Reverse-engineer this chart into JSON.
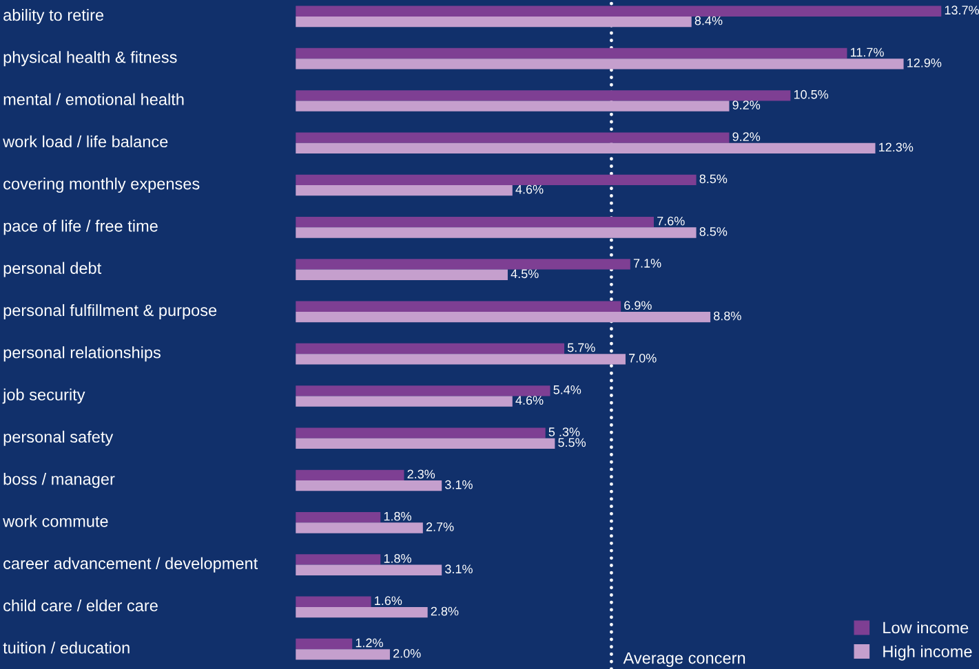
{
  "chart_data": {
    "type": "bar",
    "orientation": "horizontal",
    "categories": [
      "ability to retire",
      "physical health & fitness",
      "mental / emotional health",
      "work load / life balance",
      "covering monthly expenses",
      "pace of life / free time",
      "personal debt",
      "personal fulfillment & purpose",
      "personal relationships",
      "job security",
      "personal safety",
      "boss / manager",
      "work commute",
      "career advancement / development",
      "child care / elder care",
      "tuition / education"
    ],
    "series": [
      {
        "name": "Low income",
        "color": "#7e3f93",
        "values": [
          13.7,
          11.7,
          10.5,
          9.2,
          8.5,
          7.6,
          7.1,
          6.9,
          5.7,
          5.4,
          5.3,
          2.3,
          1.8,
          1.8,
          1.6,
          1.2
        ],
        "value_labels": [
          "13.7%",
          "11.7%",
          "10.5%",
          "9.2%",
          "8.5%",
          "7.6%",
          "7.1%",
          "6.9%",
          "5.7%",
          "5.4%",
          "5 .3%",
          "2.3%",
          "1.8%",
          "1.8%",
          "1.6%",
          "1.2%"
        ]
      },
      {
        "name": "High income",
        "color": "#c59fcd",
        "values": [
          8.4,
          12.9,
          9.2,
          12.3,
          4.6,
          8.5,
          4.5,
          8.8,
          7.0,
          4.6,
          5.5,
          3.1,
          2.7,
          3.1,
          2.8,
          2.0
        ],
        "value_labels": [
          "8.4%",
          "12.9%",
          "9.2%",
          "12.3%",
          "4.6%",
          "8.5%",
          "4.5%",
          "8.8%",
          "7.0%",
          "4.6%",
          "5.5%",
          "3.1%",
          "2.7%",
          "3.1%",
          "2.8%",
          "2.0%"
        ]
      }
    ],
    "xlim": [
      0,
      14.5
    ],
    "ref_lines": [
      {
        "axis": "x",
        "value": 6.7,
        "label": "Average concern",
        "color": "#ffffff",
        "line_style": "dotted"
      }
    ],
    "legend": "bottom right"
  }
}
